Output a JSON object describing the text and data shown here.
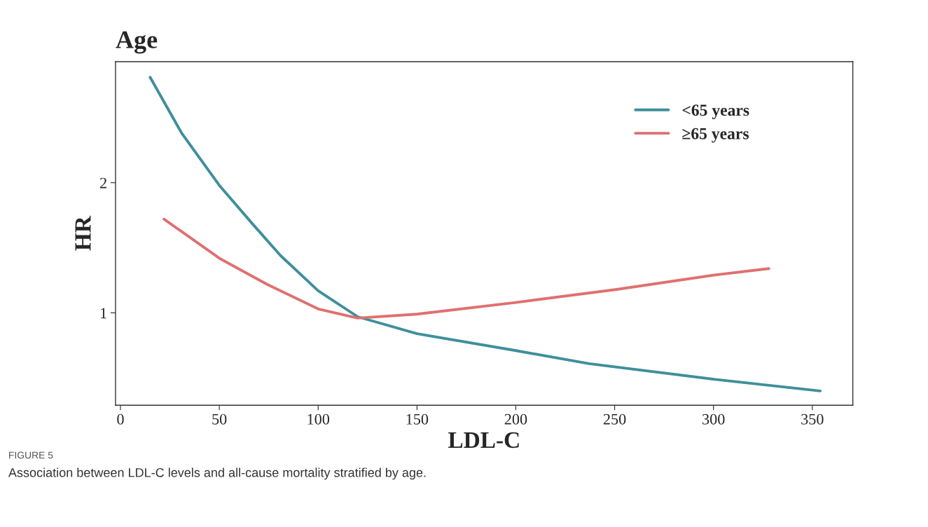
{
  "chart_data": {
    "type": "line",
    "title": "Age",
    "xlabel": "LDL-C",
    "ylabel": "HR",
    "xlim": [
      -2.5,
      370.5
    ],
    "xticks": [
      0,
      50,
      100,
      150,
      200,
      250,
      300,
      350
    ],
    "ylim": [
      0.29,
      2.93
    ],
    "yticks": [
      1,
      2
    ],
    "grid": false,
    "legend": "top right",
    "marker": "none",
    "line_style": "solid",
    "series": [
      {
        "name": "<65 years",
        "color": "#3f8f9b",
        "x": [
          15,
          31,
          50,
          67,
          81,
          100,
          120,
          150,
          200,
          237,
          300,
          354
        ],
        "values": [
          2.81,
          2.38,
          1.98,
          1.68,
          1.44,
          1.17,
          0.97,
          0.84,
          0.71,
          0.61,
          0.49,
          0.4
        ]
      },
      {
        "name": "≥65 years",
        "color": "#e07070",
        "x": [
          22,
          50,
          74,
          100,
          120,
          150,
          200,
          251,
          300,
          328
        ],
        "values": [
          1.72,
          1.42,
          1.22,
          1.03,
          0.96,
          0.99,
          1.08,
          1.18,
          1.29,
          1.34
        ]
      }
    ],
    "annotations": [
      "FIGURE 5",
      "Association between LDL-C levels and all-cause mortality stratified by age."
    ]
  }
}
